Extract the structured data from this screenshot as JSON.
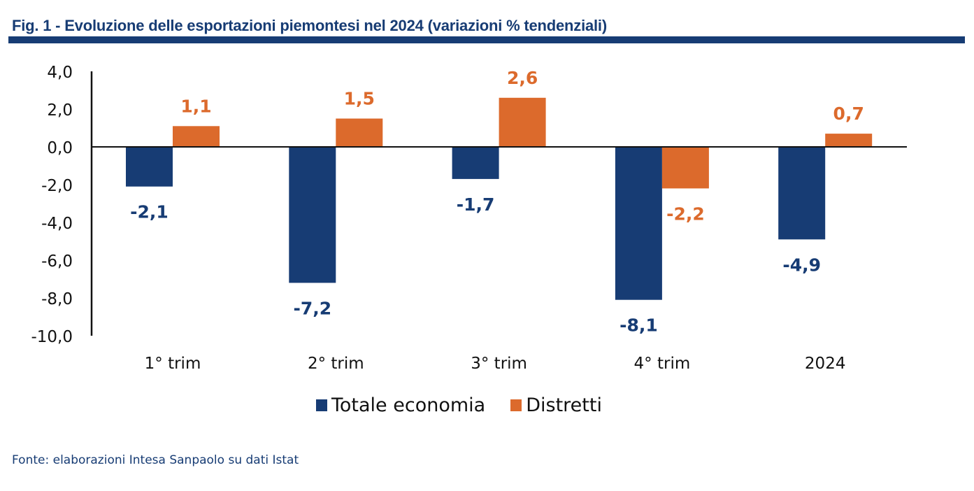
{
  "header": {
    "title": "Fig. 1 - Evoluzione delle esportazioni piemontesi nel 2024 (variazioni % tendenziali)"
  },
  "footer": {
    "source": "Fonte: elaborazioni Intesa Sanpaolo su dati Istat"
  },
  "colors": {
    "title": "#173c74",
    "totale": "#173c74",
    "distretti": "#dc6a2c"
  },
  "chart_data": {
    "type": "bar",
    "title": "Fig. 1 - Evoluzione delle esportazioni piemontesi nel 2024 (variazioni % tendenziali)",
    "xlabel": "",
    "ylabel": "",
    "categories": [
      "1° trim",
      "2° trim",
      "3° trim",
      "4° trim",
      "2024"
    ],
    "series": [
      {
        "name": "Totale economia",
        "color": "#173c74",
        "values": [
          -2.1,
          -7.2,
          -1.7,
          -8.1,
          -4.9
        ],
        "labels": [
          "-2,1",
          "-7,2",
          "-1,7",
          "-8,1",
          "-4,9"
        ]
      },
      {
        "name": "Distretti",
        "color": "#dc6a2c",
        "values": [
          1.1,
          1.5,
          2.6,
          -2.2,
          0.7
        ],
        "labels": [
          "1,1",
          "1,5",
          "2,6",
          "-2,2",
          "0,7"
        ]
      }
    ],
    "ylim": [
      -10,
      4
    ],
    "yticks": [
      4,
      2,
      0,
      -2,
      -4,
      -6,
      -8,
      -10
    ],
    "ytick_labels": [
      "4,0",
      "2,0",
      "0,0",
      "-2,0",
      "-4,0",
      "-6,0",
      "-8,0",
      "-10,0"
    ],
    "grid": false,
    "legend": "bottom-center"
  }
}
